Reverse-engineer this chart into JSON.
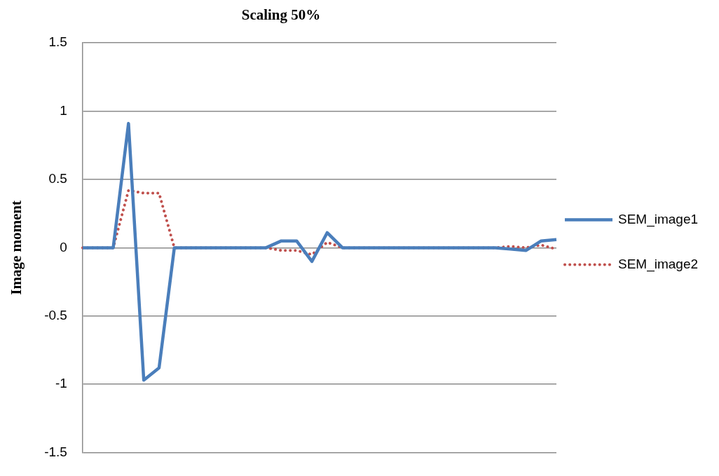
{
  "chart_data": {
    "type": "line",
    "title": "Scaling 50%",
    "ylabel": "Image moment",
    "categories": [
      null,
      null,
      null,
      null,
      null,
      null,
      null,
      null,
      null,
      null,
      null,
      null,
      null,
      null,
      null,
      null,
      null,
      null,
      null,
      null,
      null,
      null,
      null,
      null,
      null,
      null,
      null,
      null,
      null,
      null,
      null,
      null
    ],
    "series": [
      {
        "name": "SEM_image1",
        "color": "#4a7ebb",
        "line_style": "solid",
        "values": [
          0,
          0,
          0,
          0.91,
          -0.97,
          -0.88,
          0,
          0,
          0,
          0,
          0,
          0,
          0,
          0.05,
          0.05,
          -0.1,
          0.11,
          0,
          0,
          0,
          0,
          0,
          0,
          0,
          0,
          0,
          0,
          0,
          -0.01,
          -0.02,
          0.05,
          0.06
        ]
      },
      {
        "name": "SEM_image2",
        "color": "#c0504d",
        "line_style": "dotted",
        "values": [
          0,
          0,
          0,
          0.42,
          0.4,
          0.4,
          0,
          0,
          0,
          0,
          0,
          0,
          0,
          -0.02,
          -0.02,
          -0.05,
          0.04,
          0,
          0,
          0,
          0,
          0,
          0,
          0,
          0,
          0,
          0,
          0,
          0.01,
          0,
          0.02,
          -0.01
        ]
      }
    ],
    "ylim": [
      -1.5,
      1.5
    ],
    "yticks": [
      -1.5,
      -1,
      -0.5,
      0,
      0.5,
      1,
      1.5
    ],
    "grid": "y",
    "legend": "right",
    "tick_labels": "y",
    "marker": "none"
  }
}
